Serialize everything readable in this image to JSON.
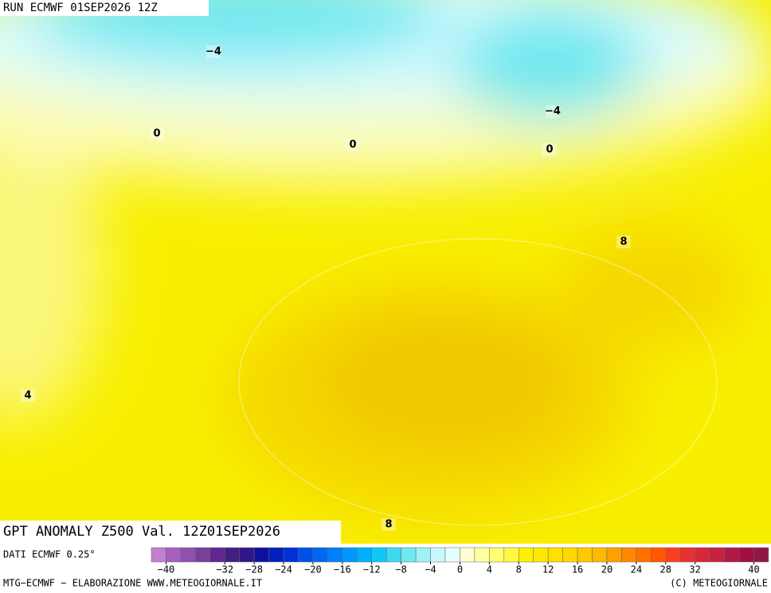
{
  "header": {
    "run": "RUN ECMWF 01SEP2026 12Z"
  },
  "map": {
    "contour_labels": [
      "−4",
      "0",
      "0",
      "−4",
      "0",
      "8",
      "4",
      "8"
    ],
    "title": "GPT ANOMALY Z500 Val. 12Z01SEP2026"
  },
  "legend": {
    "source": "DATI ECMWF 0.25°",
    "colors": [
      "#c080d0",
      "#a860c0",
      "#9050b0",
      "#784098",
      "#602890",
      "#402080",
      "#301888",
      "#1010a0",
      "#0020c0",
      "#0030d8",
      "#0050e8",
      "#0068f0",
      "#0080f8",
      "#0098ff",
      "#00b0ff",
      "#10c8f8",
      "#40d8f0",
      "#70e8f0",
      "#a0f0f8",
      "#c8f8ff",
      "#e8ffff",
      "#ffffd0",
      "#ffffa0",
      "#ffff70",
      "#fff840",
      "#fff000",
      "#ffe800",
      "#ffe000",
      "#ffd800",
      "#ffc800",
      "#ffb800",
      "#ffa000",
      "#ff8800",
      "#ff7000",
      "#ff5800",
      "#f84020",
      "#e83030",
      "#d82838",
      "#c82040",
      "#b01848",
      "#a01040",
      "#901848"
    ],
    "ticks": [
      {
        "value": -40,
        "label": "−40"
      },
      {
        "value": -32,
        "label": "−32"
      },
      {
        "value": -28,
        "label": "−28"
      },
      {
        "value": -24,
        "label": "−24"
      },
      {
        "value": -20,
        "label": "−20"
      },
      {
        "value": -16,
        "label": "−16"
      },
      {
        "value": -12,
        "label": "−12"
      },
      {
        "value": -8,
        "label": "−8"
      },
      {
        "value": -4,
        "label": "−4"
      },
      0,
      4,
      8,
      12,
      16,
      20,
      24,
      28,
      32,
      40
    ]
  },
  "footer": {
    "credit": "MTG−ECMWF − ELABORAZIONE WWW.METEOGIORNALE.IT",
    "copyright": "(C) METEOGIORNALE"
  }
}
